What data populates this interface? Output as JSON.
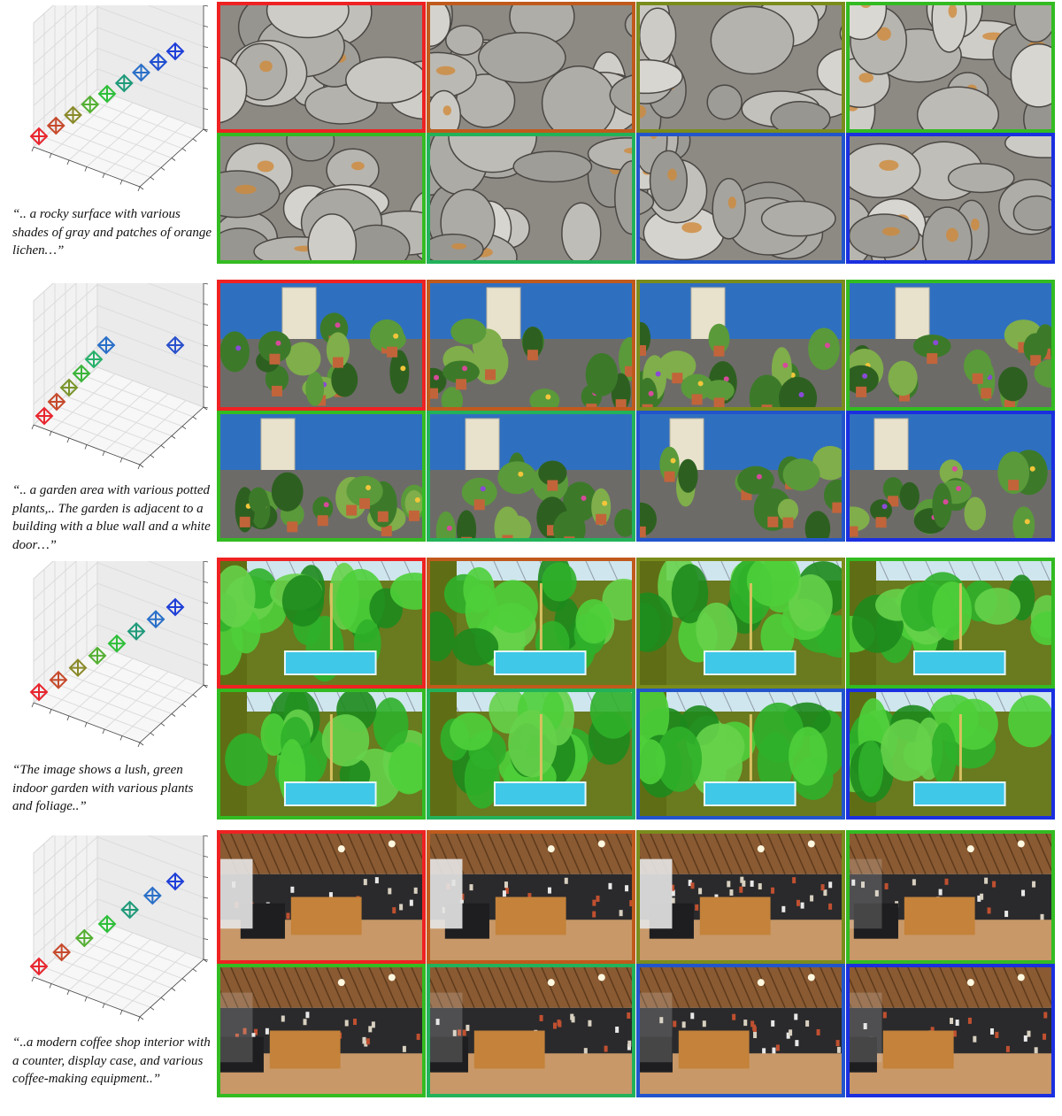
{
  "rows": [
    {
      "caption": "“.. a rocky surface with various shades of gray and patches of orange lichen…”",
      "scene": "rocks",
      "frame_colors": [
        "#ee2222",
        "#c05a1c",
        "#7a8c1c",
        "#33bb22",
        "#33bb22",
        "#22b25a",
        "#2255cc",
        "#1a2fe0"
      ],
      "camera_colors": [
        "#e8262f",
        "#c64a2c",
        "#8a8a2a",
        "#55b033",
        "#2fbf3a",
        "#1f9a7a",
        "#2a70c8",
        "#2050d0",
        "#1f3fd8"
      ]
    },
    {
      "caption": "“.. a garden area with various potted plants,.. The garden is adjacent to a building with a blue wall and a white door…”",
      "scene": "garden",
      "frame_colors": [
        "#ee2222",
        "#c05a1c",
        "#7a8c1c",
        "#33bb22",
        "#33bb22",
        "#22b25a",
        "#2255cc",
        "#1a2fe0"
      ],
      "camera_colors": [
        "#e8262f",
        "#c64a2c",
        "#7a962d",
        "#3cb53a",
        "#27b06a",
        "#2a6fc8",
        "#2a50cc"
      ]
    },
    {
      "caption": "“The image shows a lush, green indoor garden with various plants and foliage..”",
      "scene": "indoor-garden",
      "frame_colors": [
        "#ee2222",
        "#c05a1c",
        "#7a8c1c",
        "#33bb22",
        "#33bb22",
        "#22b25a",
        "#2255cc",
        "#1a2fe0"
      ],
      "camera_colors": [
        "#e8262f",
        "#c64a2c",
        "#8a8a2a",
        "#55b033",
        "#2fbf3a",
        "#1f9a7a",
        "#2a70c8",
        "#1f3fd8"
      ]
    },
    {
      "caption": "“..a modern coffee shop interior with a counter, display case, and various coffee-making equipment..”",
      "scene": "coffee-shop",
      "frame_colors": [
        "#ee2222",
        "#c05a1c",
        "#7a8c1c",
        "#33bb22",
        "#33bb22",
        "#22b25a",
        "#2255cc",
        "#1a2fe0"
      ],
      "camera_colors": [
        "#e8262f",
        "#c64a2c",
        "#55b033",
        "#2fbf3a",
        "#1f9a7a",
        "#2a70c8",
        "#1f3fd8"
      ]
    }
  ]
}
